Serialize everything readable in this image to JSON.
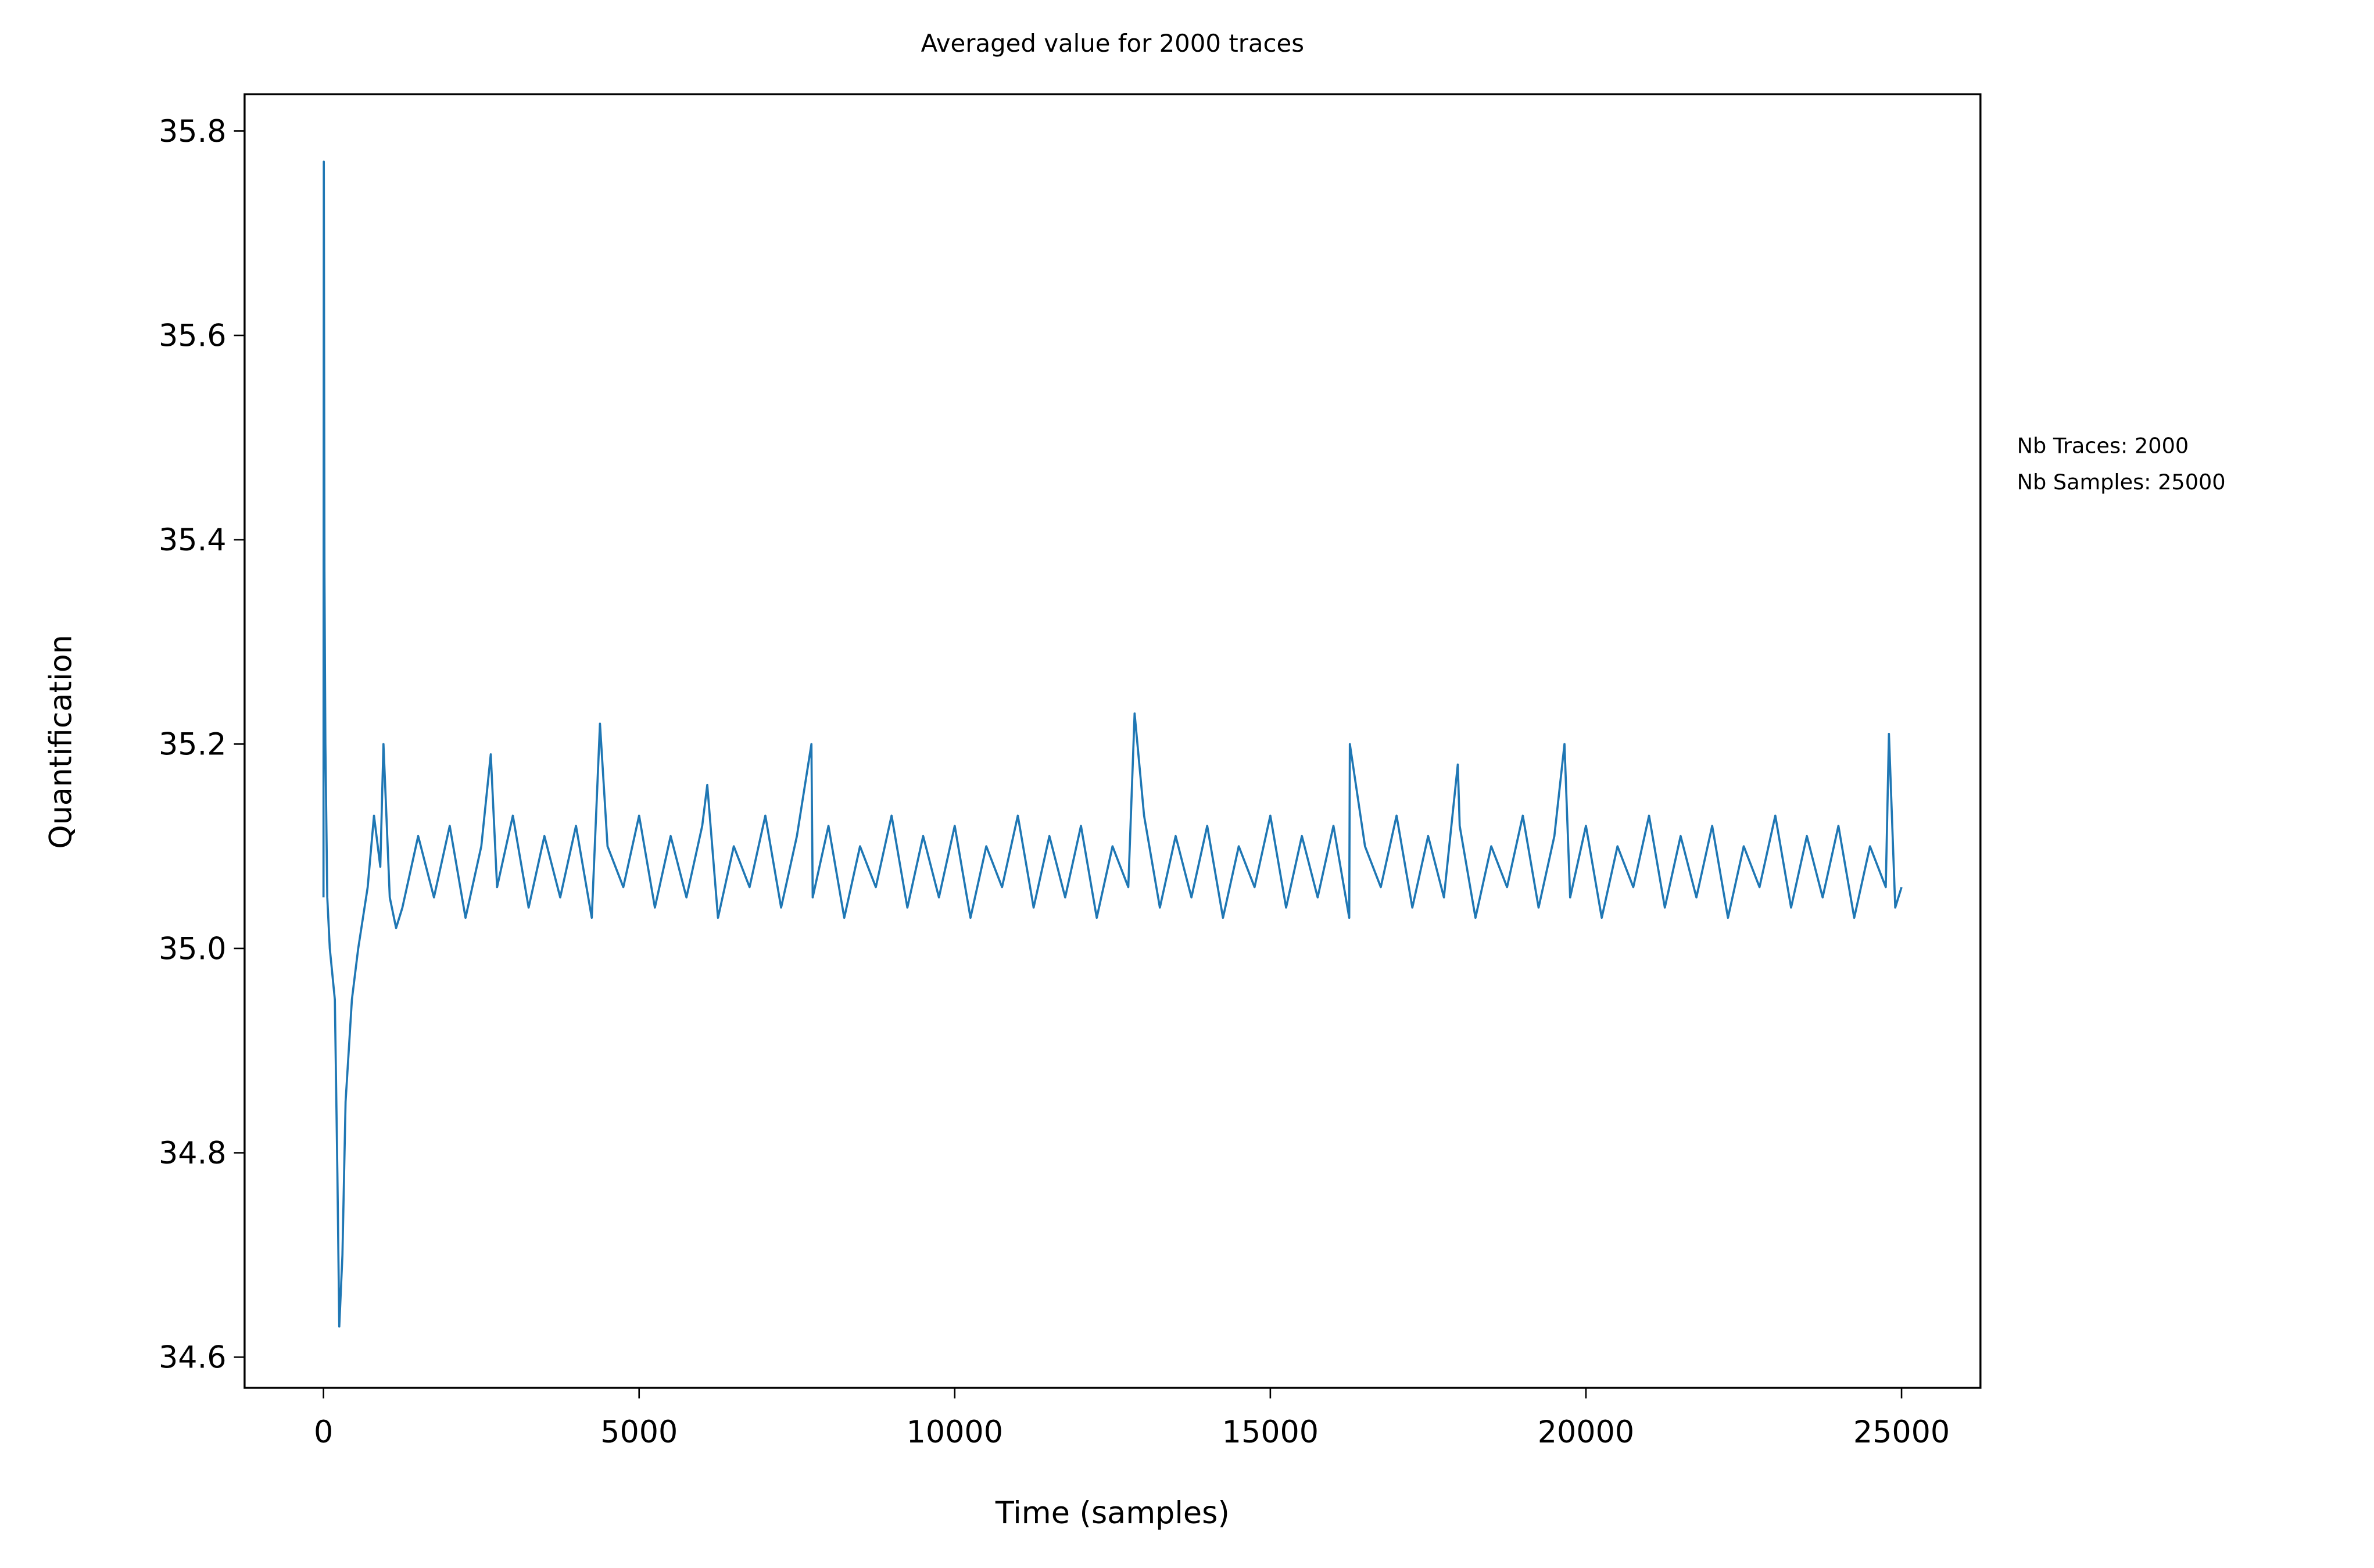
{
  "chart_data": {
    "type": "line",
    "title": "Averaged value for 2000 traces",
    "xlabel": "Time (samples)",
    "ylabel": "Quantification",
    "annotations": [
      "Nb Traces: 2000",
      "Nb Samples: 25000"
    ],
    "xlim": [
      -1250,
      26250
    ],
    "ylim": [
      34.57,
      35.836
    ],
    "xticks": [
      0,
      5000,
      10000,
      15000,
      20000,
      25000
    ],
    "yticks": [
      34.6,
      34.8,
      {
        "value": 35,
        "label": "35.0"
      },
      35.2,
      35.4,
      35.6,
      35.8
    ],
    "grid": false,
    "x": [
      0,
      5,
      15,
      30,
      60,
      100,
      180,
      220,
      250,
      300,
      350,
      450,
      550,
      700,
      800,
      900,
      950,
      1050,
      1150,
      1250,
      1500,
      1750,
      2000,
      2250,
      2500,
      2650,
      2750,
      3000,
      3250,
      3500,
      3750,
      4000,
      4250,
      4380,
      4500,
      4750,
      5000,
      5250,
      5500,
      5750,
      6000,
      6080,
      6250,
      6500,
      6750,
      7000,
      7250,
      7500,
      7730,
      7750,
      8000,
      8250,
      8500,
      8750,
      9000,
      9250,
      9500,
      9750,
      10000,
      10250,
      10500,
      10750,
      11000,
      11250,
      11500,
      11750,
      12000,
      12250,
      12500,
      12750,
      12850,
      13000,
      13250,
      13500,
      13750,
      14000,
      14250,
      14500,
      14750,
      15000,
      15250,
      15500,
      15750,
      16000,
      16250,
      16260,
      16500,
      16750,
      17000,
      17250,
      17500,
      17750,
      17970,
      18000,
      18250,
      18500,
      18750,
      19000,
      19250,
      19500,
      19660,
      19750,
      20000,
      20250,
      20500,
      20750,
      21000,
      21250,
      21500,
      21750,
      22000,
      22250,
      22500,
      22750,
      23000,
      23250,
      23500,
      23750,
      24000,
      24250,
      24500,
      24750,
      24800,
      24900,
      25000
    ],
    "series": [
      {
        "name": "Averaged value",
        "color": "#1f77b4",
        "values": [
          35.05,
          35.77,
          35.37,
          35.2,
          35.05,
          35.0,
          34.95,
          34.78,
          34.63,
          34.7,
          34.85,
          34.95,
          35.0,
          35.06,
          35.13,
          35.08,
          35.2,
          35.05,
          35.02,
          35.04,
          35.11,
          35.05,
          35.12,
          35.03,
          35.1,
          35.19,
          35.06,
          35.13,
          35.04,
          35.11,
          35.05,
          35.12,
          35.03,
          35.22,
          35.1,
          35.06,
          35.13,
          35.04,
          35.11,
          35.05,
          35.12,
          35.16,
          35.03,
          35.1,
          35.06,
          35.13,
          35.04,
          35.11,
          35.2,
          35.05,
          35.12,
          35.03,
          35.1,
          35.06,
          35.13,
          35.04,
          35.11,
          35.05,
          35.12,
          35.03,
          35.1,
          35.06,
          35.13,
          35.04,
          35.11,
          35.05,
          35.12,
          35.03,
          35.1,
          35.06,
          35.23,
          35.13,
          35.04,
          35.11,
          35.05,
          35.12,
          35.03,
          35.1,
          35.06,
          35.13,
          35.04,
          35.11,
          35.05,
          35.12,
          35.03,
          35.2,
          35.1,
          35.06,
          35.13,
          35.04,
          35.11,
          35.05,
          35.18,
          35.12,
          35.03,
          35.1,
          35.06,
          35.13,
          35.04,
          35.11,
          35.2,
          35.05,
          35.12,
          35.03,
          35.1,
          35.06,
          35.13,
          35.04,
          35.11,
          35.05,
          35.12,
          35.03,
          35.1,
          35.06,
          35.13,
          35.04,
          35.11,
          35.05,
          35.12,
          35.03,
          35.1,
          35.06,
          35.21,
          35.04,
          35.06
        ]
      }
    ]
  }
}
